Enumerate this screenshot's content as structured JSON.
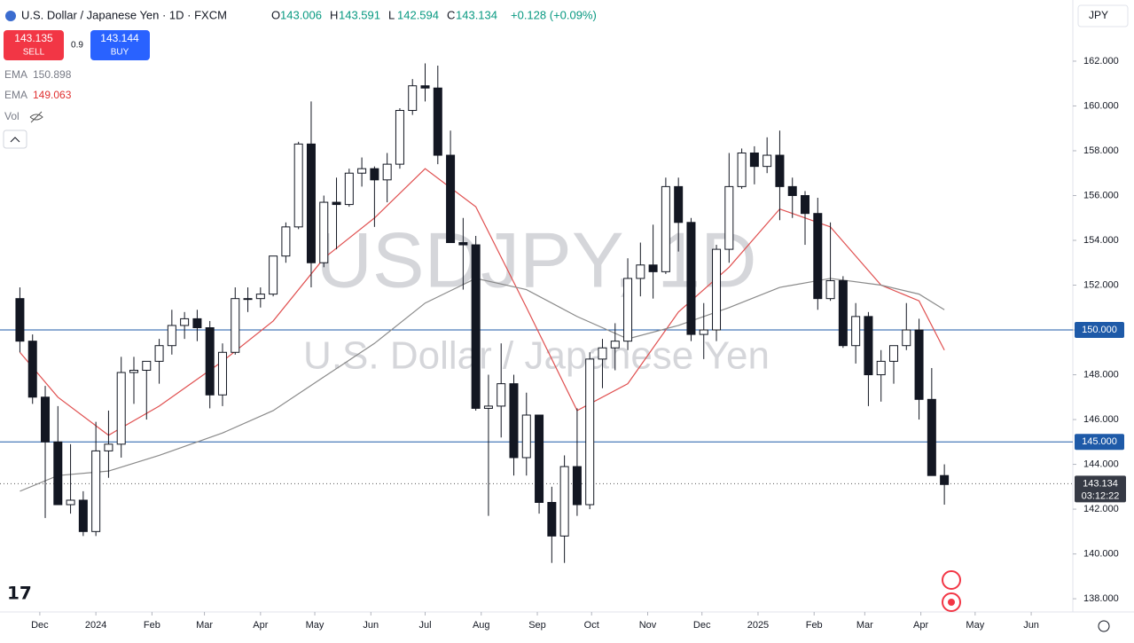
{
  "header": {
    "symbol": "U.S. Dollar / Japanese Yen · 1D · FXCM",
    "ohlc": [
      {
        "key": "O",
        "value": "143.006"
      },
      {
        "key": "H",
        "value": "143.591"
      },
      {
        "key": "L",
        "value": "142.594"
      },
      {
        "key": "C",
        "value": "143.134"
      }
    ],
    "change": "+0.128 (+0.09%)",
    "currency": "JPY"
  },
  "trade": {
    "sell_price": "143.135",
    "sell": "SELL",
    "spread": "0.9",
    "buy_price": "143.144",
    "buy": "BUY"
  },
  "indicators": [
    {
      "name": "EMA",
      "value": "150.898",
      "color": "#787b86"
    },
    {
      "name": "EMA",
      "value": "149.063",
      "color": "#e03030"
    },
    {
      "name": "Vol"
    }
  ],
  "chart_data": {
    "type": "candlestick",
    "watermark": "USDJPY, 1D",
    "watermark_sub": "U.S. Dollar / Japanese Yen",
    "x": [
      -11,
      -4,
      3,
      10,
      17,
      24,
      31,
      38,
      45,
      52,
      59,
      66,
      73,
      80,
      87,
      94,
      101,
      108,
      115,
      122,
      129,
      136,
      143,
      150,
      157,
      164,
      171,
      178,
      185,
      192,
      199,
      206,
      213,
      220,
      227,
      234,
      241,
      248,
      255,
      262,
      269,
      276,
      283,
      290,
      297,
      304,
      311,
      318,
      325,
      332,
      339,
      346,
      353,
      360,
      367,
      374,
      381,
      388,
      395,
      402,
      409,
      416,
      423,
      430,
      437,
      444,
      451,
      458,
      465,
      472,
      479,
      486,
      493,
      500
    ],
    "open": [
      151.4,
      149.5,
      147.0,
      145.0,
      142.2,
      142.4,
      141.0,
      144.6,
      144.9,
      148.1,
      148.2,
      148.6,
      149.3,
      150.2,
      150.5,
      150.1,
      147.1,
      149.0,
      151.4,
      151.4,
      151.6,
      153.3,
      154.6,
      158.3,
      153.0,
      155.7,
      155.6,
      157.0,
      157.2,
      156.7,
      157.4,
      159.8,
      160.9,
      160.8,
      157.8,
      153.9,
      153.8,
      146.5,
      146.6,
      147.6,
      144.3,
      146.2,
      142.3,
      140.8,
      143.9,
      142.2,
      148.7,
      149.2,
      149.5,
      152.3,
      152.9,
      152.6,
      156.4,
      154.8,
      149.8,
      150.0,
      153.6,
      156.4,
      157.9,
      157.3,
      157.8,
      156.4,
      156.0,
      155.2,
      151.4,
      152.2,
      149.3,
      150.6,
      148.0,
      148.6,
      149.3,
      150.0,
      146.9,
      143.5
    ],
    "high": [
      151.9,
      149.8,
      147.5,
      146.6,
      144.9,
      142.8,
      145.9,
      146.4,
      148.8,
      148.8,
      148.6,
      149.6,
      150.9,
      150.8,
      150.9,
      150.4,
      149.4,
      151.9,
      151.9,
      151.9,
      153.3,
      154.8,
      158.4,
      160.2,
      156.0,
      156.8,
      157.2,
      157.7,
      157.3,
      157.9,
      159.9,
      161.2,
      161.9,
      161.8,
      158.9,
      155.0,
      154.2,
      148.0,
      149.4,
      148.0,
      147.2,
      146.2,
      143.0,
      144.4,
      146.5,
      149.0,
      149.6,
      150.3,
      153.2,
      153.9,
      154.7,
      156.8,
      156.8,
      155.0,
      151.2,
      153.8,
      157.9,
      158.1,
      158.2,
      158.6,
      158.9,
      156.8,
      156.2,
      155.9,
      154.8,
      152.4,
      151.2,
      150.8,
      149.1,
      149.3,
      151.2,
      150.5,
      148.3,
      144.0
    ],
    "low": [
      149.0,
      146.7,
      141.6,
      142.2,
      141.8,
      140.8,
      140.8,
      143.4,
      144.3,
      146.7,
      146.0,
      147.6,
      148.9,
      149.6,
      149.5,
      146.5,
      146.6,
      148.9,
      150.8,
      151.0,
      151.5,
      153.0,
      154.5,
      151.9,
      152.8,
      153.6,
      155.5,
      156.4,
      154.6,
      155.7,
      157.2,
      159.6,
      160.2,
      157.4,
      153.9,
      151.8,
      146.4,
      141.7,
      145.2,
      143.5,
      143.5,
      141.8,
      139.6,
      139.6,
      141.7,
      142.0,
      147.4,
      148.2,
      149.1,
      151.5,
      151.4,
      152.5,
      153.5,
      149.5,
      148.7,
      149.5,
      153.0,
      156.3,
      156.5,
      157.0,
      154.9,
      155.0,
      153.8,
      150.9,
      151.3,
      149.2,
      148.5,
      146.6,
      146.8,
      147.6,
      149.1,
      146.0,
      143.5,
      142.2
    ],
    "close": [
      149.5,
      147.0,
      145.0,
      142.2,
      142.4,
      141.0,
      144.6,
      144.9,
      148.1,
      148.2,
      148.6,
      149.3,
      150.2,
      150.5,
      150.1,
      147.1,
      149.0,
      151.4,
      151.4,
      151.6,
      153.3,
      154.6,
      158.3,
      153.0,
      155.7,
      155.6,
      157.0,
      157.2,
      156.7,
      157.4,
      159.8,
      160.9,
      160.8,
      157.8,
      153.9,
      153.8,
      146.5,
      146.6,
      147.6,
      144.3,
      146.2,
      142.3,
      140.8,
      143.9,
      142.2,
      148.7,
      149.2,
      149.5,
      152.3,
      152.9,
      152.6,
      156.4,
      154.8,
      149.8,
      150.0,
      153.6,
      156.4,
      157.9,
      157.3,
      157.8,
      156.4,
      156.0,
      155.2,
      151.4,
      152.2,
      149.3,
      150.6,
      148.0,
      148.6,
      149.3,
      150.0,
      146.9,
      143.5,
      143.1
    ],
    "lines": [
      {
        "color": "#e05050",
        "x": [
          -11,
          10,
          38,
          66,
          101,
          129,
          157,
          185,
          213,
          241,
          269,
          297,
          325,
          353,
          381,
          409,
          437,
          465,
          486,
          500
        ],
        "values": [
          149.0,
          147.0,
          145.3,
          146.6,
          148.6,
          150.4,
          153.2,
          155.0,
          157.2,
          155.5,
          151.0,
          146.4,
          147.6,
          150.8,
          152.8,
          155.4,
          154.6,
          152.0,
          151.3,
          149.1
        ]
      },
      {
        "color": "#8a8a8a",
        "x": [
          -11,
          10,
          38,
          66,
          101,
          129,
          157,
          185,
          213,
          241,
          269,
          297,
          325,
          353,
          381,
          409,
          437,
          465,
          486,
          500
        ],
        "values": [
          142.8,
          143.5,
          143.7,
          144.4,
          145.4,
          146.4,
          147.9,
          149.4,
          151.2,
          152.3,
          151.8,
          150.6,
          149.6,
          150.2,
          151.0,
          151.9,
          152.3,
          152.0,
          151.6,
          150.9
        ]
      }
    ],
    "levels": [
      {
        "value": 150,
        "label": "150.000"
      },
      {
        "value": 145,
        "label": "145.000"
      }
    ],
    "last_price": {
      "value": 143.134,
      "label": "143.134",
      "timer": "03:12:22"
    },
    "xlim": [
      -22,
      571
    ],
    "ylim": [
      137.41,
      164.73
    ],
    "yticks": [
      {
        "value": 138,
        "label": "138.000"
      },
      {
        "value": 140,
        "label": "140.000"
      },
      {
        "value": 142,
        "label": "142.000"
      },
      {
        "value": 144,
        "label": "144.000"
      },
      {
        "value": 146,
        "label": "146.000"
      },
      {
        "value": 148,
        "label": "148.000"
      },
      {
        "value": 150,
        "label": "150.000"
      },
      {
        "value": 152,
        "label": "152.000"
      },
      {
        "value": 154,
        "label": "154.000"
      },
      {
        "value": 156,
        "label": "156.000"
      },
      {
        "value": 158,
        "label": "158.000"
      },
      {
        "value": 160,
        "label": "160.000"
      },
      {
        "value": 162,
        "label": "162.000"
      }
    ],
    "xticks": [
      {
        "value": 0,
        "label": "Dec"
      },
      {
        "value": 31,
        "label": "2024"
      },
      {
        "value": 62,
        "label": "Feb"
      },
      {
        "value": 91,
        "label": "Mar"
      },
      {
        "value": 122,
        "label": "Apr"
      },
      {
        "value": 152,
        "label": "May"
      },
      {
        "value": 183,
        "label": "Jun"
      },
      {
        "value": 213,
        "label": "Jul"
      },
      {
        "value": 244,
        "label": "Aug"
      },
      {
        "value": 275,
        "label": "Sep"
      },
      {
        "value": 305,
        "label": "Oct"
      },
      {
        "value": 336,
        "label": "Nov"
      },
      {
        "value": 366,
        "label": "Dec"
      },
      {
        "value": 397,
        "label": "2025"
      },
      {
        "value": 428,
        "label": "Feb"
      },
      {
        "value": 456,
        "label": "Mar"
      },
      {
        "value": 487,
        "label": "Apr"
      },
      {
        "value": 517,
        "label": "May"
      },
      {
        "value": 548,
        "label": "Jun"
      }
    ]
  }
}
